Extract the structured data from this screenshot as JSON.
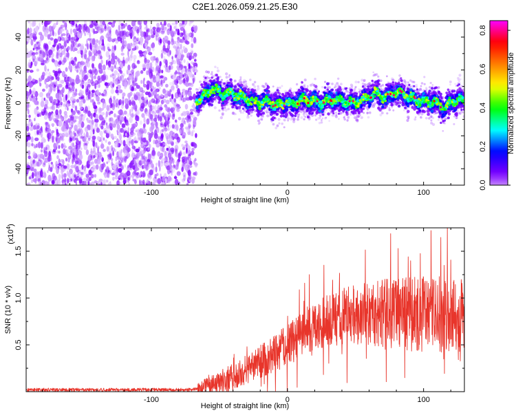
{
  "title": "C2E1.2026.059.21.25.E30",
  "chart_data": [
    {
      "type": "heatmap",
      "name": "spectrogram",
      "title": "C2E1.2026.059.21.25.E30",
      "xlabel": "Height of straight line (km)",
      "ylabel": "Frequency (Hz)",
      "xlim": [
        -192,
        130
      ],
      "ylim": [
        -50,
        50
      ],
      "xticks": [
        -100,
        0,
        100
      ],
      "yticks": [
        -40,
        -20,
        0,
        20,
        40
      ],
      "xtick_labels": [
        "-100",
        "0",
        "100"
      ],
      "ytick_labels": [
        "-40",
        "-20",
        "0",
        "20",
        "40"
      ],
      "noise_region_x": [
        -192,
        -67
      ],
      "signal_start_x": -67,
      "ridge": {
        "x": [
          -67,
          -60,
          -55,
          -48,
          -42,
          -35,
          -28,
          -20,
          -14,
          -8,
          -2,
          4,
          10,
          18,
          25,
          32,
          40,
          48,
          55,
          60,
          65,
          72,
          80,
          88,
          95,
          102,
          108,
          114,
          120,
          126,
          130
        ],
        "frequency": [
          1,
          5,
          9,
          5,
          6,
          4,
          2,
          0,
          1,
          -2,
          0,
          -1,
          2,
          1,
          0,
          2,
          1,
          0,
          1,
          4,
          6,
          3,
          7,
          4,
          2,
          0,
          1,
          -3,
          0,
          3,
          0
        ]
      },
      "colorbar": {
        "label": "Normalized spectral amplitude",
        "range": [
          0.0,
          0.85
        ],
        "ticks": [
          0.0,
          0.2,
          0.4,
          0.6,
          0.8
        ],
        "tick_labels": [
          "0.0",
          "0.2",
          "0.4",
          "0.6",
          "0.8"
        ],
        "colors": [
          "#ffffff",
          "#7f00ff",
          "#0000ff",
          "#00ffff",
          "#00ff00",
          "#ffff00",
          "#ff7f00",
          "#ff0000",
          "#ff00ff"
        ]
      }
    },
    {
      "type": "line",
      "name": "snr",
      "xlabel": "Height of straight line (km)",
      "ylabel": "SNR (10 * v/v)",
      "y_multiplier": "(x10",
      "y_multiplier_exp": "4",
      "y_multiplier_close": ")",
      "xlim": [
        -192,
        130
      ],
      "ylim": [
        0,
        1.75
      ],
      "xticks": [
        -100,
        0,
        100
      ],
      "yticks": [
        0.5,
        1.0,
        1.5
      ],
      "xtick_labels": [
        "-100",
        "0",
        "100"
      ],
      "ytick_labels": [
        "0.5",
        "1.0",
        "1.5"
      ],
      "color": "#e8352b",
      "envelope": {
        "x": [
          -192,
          -70,
          -62,
          -50,
          -40,
          -30,
          -20,
          -10,
          0,
          10,
          20,
          30,
          40,
          50,
          60,
          70,
          80,
          90,
          100,
          110,
          120,
          130
        ],
        "mean": [
          0.02,
          0.02,
          0.05,
          0.1,
          0.17,
          0.24,
          0.32,
          0.4,
          0.5,
          0.6,
          0.7,
          0.76,
          0.8,
          0.82,
          0.83,
          0.84,
          0.84,
          0.83,
          0.83,
          0.82,
          0.82,
          0.82
        ],
        "spread": [
          0.015,
          0.02,
          0.08,
          0.12,
          0.14,
          0.16,
          0.18,
          0.2,
          0.22,
          0.24,
          0.26,
          0.28,
          0.3,
          0.32,
          0.34,
          0.36,
          0.38,
          0.4,
          0.4,
          0.4,
          0.4,
          0.4
        ]
      }
    }
  ]
}
